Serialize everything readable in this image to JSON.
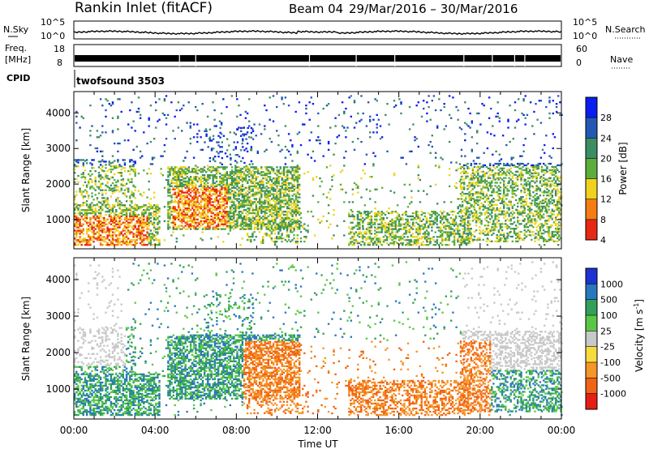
{
  "header": {
    "station": "Rankin Inlet (fitACF)",
    "beam": "Beam 04",
    "date_range": "29/Mar/2016 – 30/Mar/2016"
  },
  "panels": {
    "nsky_label": "N.Sky",
    "nsky_ticks": [
      "10^5",
      "10^0"
    ],
    "nsearch_label": "N.Search",
    "freq_label_top": "Freq.",
    "freq_label_bottom": "[MHz]",
    "freq_ticks": [
      "18",
      "8"
    ],
    "nave_ticks": [
      "60",
      "0"
    ],
    "nave_label": "Nave",
    "cpid_label": "CPID",
    "cpid_value": "twofsound 3503"
  },
  "chart_data": [
    {
      "type": "heatmap",
      "quantity": "Power",
      "ylabel": "Slant Range [km]",
      "xlabel": "",
      "x_range_hours": [
        0,
        24
      ],
      "ylim": [
        180,
        4600
      ],
      "y_ticks": [
        1000,
        2000,
        3000,
        4000
      ],
      "colorbar_label": "Power [dB]",
      "colorbar_ticks": [
        4,
        8,
        12,
        16,
        20,
        24,
        28
      ],
      "colorbar_colors": [
        "#0a1ef0",
        "#2458b4",
        "#3c8c64",
        "#5cae3c",
        "#f0d21e",
        "#f57d14",
        "#e62814"
      ]
    },
    {
      "type": "heatmap",
      "quantity": "Velocity",
      "ylabel": "Slant Range [km]",
      "xlabel": "Time UT",
      "x_ticks": [
        "00:00",
        "04:00",
        "08:00",
        "12:00",
        "16:00",
        "20:00",
        "00:00"
      ],
      "ylim": [
        180,
        4600
      ],
      "y_ticks": [
        1000,
        2000,
        3000,
        4000
      ],
      "colorbar_label": "Velocity [m s",
      "colorbar_unit_sup": "-1",
      "colorbar_unit_close": "]",
      "colorbar_ticks": [
        "1000",
        "500",
        "100",
        "25",
        "-25",
        "-100",
        "-500",
        "-1000"
      ],
      "colorbar_colors": [
        "#1e32d2",
        "#2878be",
        "#32a05a",
        "#5ac846",
        "#c8c8c8",
        "#f5dc3c",
        "#f59628",
        "#f06414",
        "#e61e14"
      ]
    }
  ]
}
